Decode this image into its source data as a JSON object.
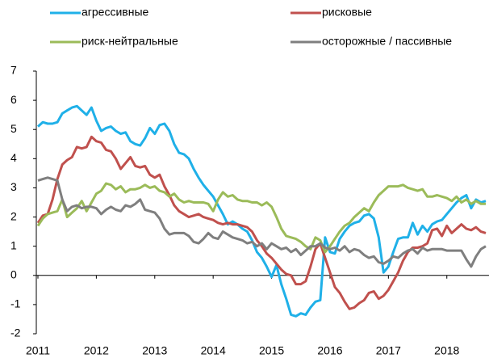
{
  "chart_data": {
    "type": "line",
    "categories": [
      "2011",
      null,
      null,
      null,
      null,
      null,
      null,
      null,
      null,
      null,
      null,
      null,
      "2012",
      null,
      null,
      null,
      null,
      null,
      null,
      null,
      null,
      null,
      null,
      null,
      "2013",
      null,
      null,
      null,
      null,
      null,
      null,
      null,
      null,
      null,
      null,
      null,
      "2014",
      null,
      null,
      null,
      null,
      null,
      null,
      null,
      null,
      null,
      null,
      null,
      "2015",
      null,
      null,
      null,
      null,
      null,
      null,
      null,
      null,
      null,
      null,
      null,
      "2016",
      null,
      null,
      null,
      null,
      null,
      null,
      null,
      null,
      null,
      null,
      null,
      "2017",
      null,
      null,
      null,
      null,
      null,
      null,
      null,
      null,
      null,
      null,
      null,
      "2018",
      null,
      null,
      null,
      null,
      null,
      null,
      null,
      null
    ],
    "series": [
      {
        "name": "агрессивные",
        "color": "#1fb0e8",
        "values": [
          5.1,
          5.25,
          5.2,
          5.2,
          5.25,
          5.55,
          5.65,
          5.75,
          5.8,
          5.65,
          5.5,
          5.75,
          5.3,
          4.95,
          5.05,
          5.1,
          4.95,
          4.85,
          4.9,
          4.6,
          4.5,
          4.45,
          4.7,
          5.05,
          4.85,
          5.15,
          5.2,
          4.95,
          4.5,
          4.2,
          4.15,
          4.0,
          3.65,
          3.35,
          3.1,
          2.9,
          2.7,
          2.4,
          2.1,
          1.75,
          1.85,
          1.75,
          1.6,
          1.5,
          1.2,
          0.8,
          0.6,
          0.3,
          -0.05,
          0.35,
          -0.3,
          -0.8,
          -1.35,
          -1.4,
          -1.3,
          -1.35,
          -1.1,
          -0.9,
          -0.85,
          1.3,
          0.8,
          0.75,
          1.25,
          1.5,
          1.7,
          1.8,
          1.85,
          2.05,
          2.1,
          1.95,
          1.3,
          0.1,
          0.3,
          0.8,
          1.25,
          1.3,
          1.3,
          1.8,
          1.4,
          1.7,
          1.5,
          1.75,
          1.85,
          1.9,
          2.1,
          2.3,
          2.5,
          2.65,
          2.75,
          2.3,
          2.6,
          2.5,
          2.55
        ]
      },
      {
        "name": "рисковые",
        "color": "#c0504d",
        "values": [
          1.8,
          2.05,
          2.1,
          2.6,
          3.3,
          3.8,
          3.95,
          4.05,
          4.4,
          4.35,
          4.4,
          4.75,
          4.6,
          4.55,
          4.3,
          4.25,
          4.0,
          3.65,
          3.85,
          4.05,
          3.75,
          3.7,
          3.75,
          3.45,
          3.35,
          3.45,
          3.05,
          2.75,
          2.4,
          2.2,
          2.1,
          2.0,
          2.05,
          2.1,
          2.0,
          1.95,
          1.9,
          1.8,
          1.75,
          1.8,
          1.75,
          1.75,
          1.7,
          1.65,
          1.5,
          1.2,
          1.0,
          0.75,
          0.6,
          0.4,
          0.2,
          0.05,
          0.0,
          -0.3,
          -0.3,
          -0.2,
          0.3,
          0.9,
          1.1,
          0.6,
          0.1,
          -0.4,
          -0.6,
          -0.9,
          -1.15,
          -1.1,
          -0.95,
          -0.85,
          -0.6,
          -0.55,
          -0.8,
          -0.7,
          -0.5,
          -0.2,
          0.1,
          0.5,
          0.8,
          0.95,
          0.95,
          1.0,
          1.1,
          1.55,
          1.6,
          1.35,
          1.7,
          1.45,
          1.6,
          1.75,
          1.6,
          1.55,
          1.65,
          1.5,
          1.45
        ]
      },
      {
        "name": "риск-нейтральные",
        "color": "#9bbb59",
        "values": [
          1.7,
          1.95,
          2.1,
          2.15,
          2.2,
          2.6,
          2.0,
          2.15,
          2.3,
          2.55,
          2.2,
          2.5,
          2.8,
          2.9,
          3.15,
          3.1,
          2.95,
          3.05,
          2.85,
          2.95,
          2.95,
          3.0,
          3.1,
          3.0,
          3.05,
          2.9,
          2.85,
          2.7,
          2.8,
          2.6,
          2.5,
          2.55,
          2.5,
          2.5,
          2.5,
          2.45,
          2.2,
          2.6,
          2.85,
          2.7,
          2.75,
          2.6,
          2.55,
          2.55,
          2.5,
          2.5,
          2.4,
          2.5,
          2.35,
          2.0,
          1.6,
          1.35,
          1.3,
          1.25,
          1.15,
          1.0,
          0.9,
          1.3,
          1.2,
          0.8,
          1.0,
          1.25,
          1.5,
          1.7,
          1.8,
          2.0,
          2.15,
          2.3,
          2.2,
          2.5,
          2.75,
          2.9,
          3.05,
          3.05,
          3.05,
          3.1,
          3.0,
          2.95,
          2.9,
          2.95,
          2.7,
          2.7,
          2.75,
          2.7,
          2.65,
          2.55,
          2.7,
          2.5,
          2.6,
          2.45,
          2.55,
          2.45,
          2.45
        ]
      },
      {
        "name": "осторожные / пассивные",
        "color": "#7f7f7f",
        "values": [
          3.25,
          3.3,
          3.35,
          3.3,
          3.25,
          2.6,
          2.2,
          2.35,
          2.4,
          2.3,
          2.35,
          2.35,
          2.3,
          2.1,
          2.25,
          2.35,
          2.25,
          2.2,
          2.4,
          2.35,
          2.45,
          2.6,
          2.25,
          2.2,
          2.15,
          1.95,
          1.6,
          1.4,
          1.45,
          1.45,
          1.45,
          1.35,
          1.15,
          1.1,
          1.25,
          1.45,
          1.3,
          1.25,
          1.5,
          1.4,
          1.3,
          1.25,
          1.2,
          1.1,
          1.15,
          1.0,
          1.1,
          0.9,
          1.1,
          1.0,
          0.9,
          0.95,
          0.8,
          0.9,
          0.7,
          0.85,
          1.0,
          1.0,
          1.1,
          0.95,
          0.9,
          0.95,
          0.85,
          1.0,
          0.8,
          0.9,
          0.85,
          0.7,
          0.6,
          0.65,
          0.45,
          0.4,
          0.5,
          0.65,
          0.6,
          0.75,
          0.85,
          0.9,
          0.75,
          0.95,
          0.85,
          0.9,
          0.9,
          0.9,
          0.85,
          0.85,
          0.85,
          0.85,
          0.55,
          0.3,
          0.65,
          0.9,
          1.0
        ]
      }
    ],
    "ylim": [
      -2,
      7
    ],
    "yticks": [
      -2,
      -1,
      0,
      1,
      2,
      3,
      4,
      5,
      6,
      7
    ],
    "legend": "top"
  }
}
